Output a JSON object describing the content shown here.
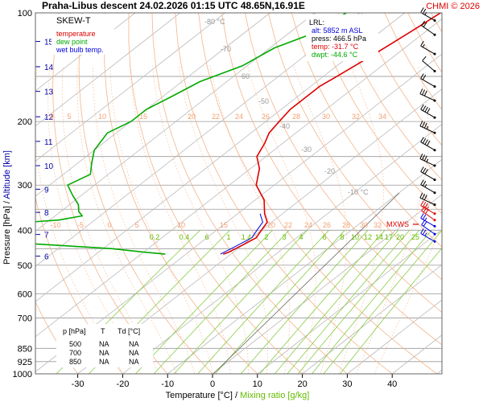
{
  "header": {
    "station": "Praha-Libus",
    "phase": "descent",
    "datetime": "24.02.2026 01:15 UTC",
    "coords": "48.65N,16.91E",
    "credit": "CHMI © 2026"
  },
  "legend": {
    "title": "SKEW-T",
    "items": [
      {
        "label": "temperature",
        "color": "#dd0000"
      },
      {
        "label": "dew point",
        "color": "#00aa00"
      },
      {
        "label": "wet bulb temp.",
        "color": "#0000dd"
      }
    ]
  },
  "lrl": {
    "title": "LRL:",
    "alt": "alt: 5852 m ASL",
    "press": "press: 466.5 hPa",
    "temp": "temp: -31.7 °C",
    "dwpt": "dwpt: -44.6 °C"
  },
  "levels_table": {
    "headers": [
      "p [hPa]",
      "T",
      "Td [°C]"
    ],
    "rows": [
      [
        "500",
        "NA",
        "NA"
      ],
      [
        "700",
        "NA",
        "NA"
      ],
      [
        "850",
        "NA",
        "NA"
      ]
    ]
  },
  "axes": {
    "pressure_label": "Pressure [hPa]",
    "altitude_label": "Altitude [km]",
    "axis_sep": "/",
    "temp_label": "Temperature [°C]",
    "mix_label": "Mixing ratio [g/kg]",
    "xlim": [
      -37,
      47
    ],
    "ylim": [
      1000,
      100
    ],
    "pressure_ticks": [
      "100",
      "200",
      "300",
      "400",
      "500",
      "600",
      "700",
      "850",
      "925",
      "1000"
    ],
    "altitude_ticks": [
      "15",
      "14",
      "13",
      "12",
      "11",
      "10",
      "9",
      "8",
      "7",
      "6"
    ],
    "temp_ticks": [
      "-30",
      "-20",
      "-10",
      "0",
      "10",
      "20",
      "30",
      "40"
    ],
    "isotherm_labels": [
      {
        "t": -80,
        "text": "-80 °C"
      },
      {
        "t": -70,
        "text": "-70"
      },
      {
        "t": -60,
        "text": "-60"
      },
      {
        "t": -50,
        "text": "-50"
      },
      {
        "t": -40,
        "text": "-40"
      },
      {
        "t": -30,
        "text": "-30"
      },
      {
        "t": -20,
        "text": "-20"
      },
      {
        "t": -10,
        "text": "-10 °C"
      }
    ],
    "theta_row_200": [
      "0",
      "5",
      "10",
      "15",
      "20",
      "22",
      "24",
      "26",
      "28",
      "30",
      "32",
      "34"
    ],
    "theta_row_380": [
      "-10",
      "-5",
      "0",
      "5",
      "10",
      "15",
      "20",
      "22",
      "24",
      "26",
      "28",
      "30",
      "32"
    ],
    "mix_ticks": [
      "0.2",
      "0.4",
      "1",
      "1.4",
      "2",
      "3",
      "4",
      "6",
      "8",
      "10",
      "12",
      "14",
      "17",
      "20",
      "25"
    ],
    "mix_tick_6": "6",
    "mix_tick_1": "1"
  },
  "mxws_label": "MXWS",
  "chart_data": {
    "type": "line",
    "title": "Praha-Libus descent 24.02.2026 01:15 UTC 48.65N,16.91E",
    "xlabel": "Temperature [°C]",
    "ylabel": "Pressure [hPa]",
    "y_scale": "log",
    "series": [
      {
        "name": "temperature",
        "color": "#dd0000",
        "points": [
          [
            100,
            -52
          ],
          [
            110,
            -53
          ],
          [
            120,
            -54
          ],
          [
            130,
            -55
          ],
          [
            140,
            -56
          ],
          [
            150,
            -57
          ],
          [
            160,
            -58
          ],
          [
            170,
            -58
          ],
          [
            185,
            -58
          ],
          [
            200,
            -57
          ],
          [
            215,
            -56
          ],
          [
            230,
            -54
          ],
          [
            250,
            -52
          ],
          [
            270,
            -48
          ],
          [
            300,
            -44
          ],
          [
            330,
            -38
          ],
          [
            360,
            -34
          ],
          [
            380,
            -31
          ],
          [
            400,
            -30
          ],
          [
            420,
            -29
          ],
          [
            440,
            -30
          ],
          [
            460,
            -31
          ],
          [
            466,
            -31.7
          ]
        ]
      },
      {
        "name": "dew point",
        "color": "#00aa00",
        "points": [
          [
            100,
            -73
          ],
          [
            115,
            -75
          ],
          [
            125,
            -79
          ],
          [
            140,
            -81
          ],
          [
            155,
            -86
          ],
          [
            170,
            -88
          ],
          [
            185,
            -90
          ],
          [
            200,
            -90
          ],
          [
            215,
            -92
          ],
          [
            240,
            -90
          ],
          [
            260,
            -87
          ],
          [
            280,
            -84
          ],
          [
            300,
            -86
          ],
          [
            320,
            -82
          ],
          [
            340,
            -78
          ],
          [
            355,
            -76
          ],
          [
            365,
            -74
          ],
          [
            375,
            -78
          ],
          [
            380,
            -84
          ],
          [
            385,
            -100
          ],
          [
            390,
            -82
          ],
          [
            400,
            -86
          ],
          [
            405,
            -112
          ],
          [
            410,
            -102
          ],
          [
            430,
            -86
          ],
          [
            450,
            -58
          ],
          [
            460,
            -50
          ],
          [
            466,
            -44.6
          ]
        ]
      },
      {
        "name": "wet bulb temp.",
        "color": "#0000dd",
        "points": [
          [
            360,
            -35
          ],
          [
            380,
            -32
          ],
          [
            400,
            -31
          ],
          [
            420,
            -30
          ],
          [
            440,
            -31
          ],
          [
            466,
            -32.3
          ]
        ]
      }
    ]
  },
  "wind_barbs": [
    {
      "p": 105,
      "dir": 300,
      "spd": 25,
      "color": "#000"
    },
    {
      "p": 115,
      "dir": 305,
      "spd": 20,
      "color": "#000"
    },
    {
      "p": 130,
      "dir": 300,
      "spd": 15,
      "color": "#000"
    },
    {
      "p": 145,
      "dir": 310,
      "spd": 10,
      "color": "#000"
    },
    {
      "p": 160,
      "dir": 300,
      "spd": 20,
      "color": "#000"
    },
    {
      "p": 175,
      "dir": 295,
      "spd": 30,
      "color": "#000"
    },
    {
      "p": 195,
      "dir": 300,
      "spd": 40,
      "color": "#000"
    },
    {
      "p": 215,
      "dir": 295,
      "spd": 35,
      "color": "#000"
    },
    {
      "p": 240,
      "dir": 300,
      "spd": 40,
      "color": "#000"
    },
    {
      "p": 265,
      "dir": 295,
      "spd": 35,
      "color": "#000"
    },
    {
      "p": 290,
      "dir": 300,
      "spd": 30,
      "color": "#000"
    },
    {
      "p": 315,
      "dir": 300,
      "spd": 25,
      "color": "#000"
    },
    {
      "p": 340,
      "dir": 295,
      "spd": 30,
      "color": "#000"
    },
    {
      "p": 360,
      "dir": 300,
      "spd": 35,
      "color": "#dd0000"
    },
    {
      "p": 375,
      "dir": 305,
      "spd": 30,
      "color": "#dd0000"
    },
    {
      "p": 390,
      "dir": 300,
      "spd": 25,
      "color": "#0000dd"
    },
    {
      "p": 410,
      "dir": 305,
      "spd": 20,
      "color": "#0000dd"
    },
    {
      "p": 430,
      "dir": 300,
      "spd": 25,
      "color": "#0000dd"
    }
  ]
}
